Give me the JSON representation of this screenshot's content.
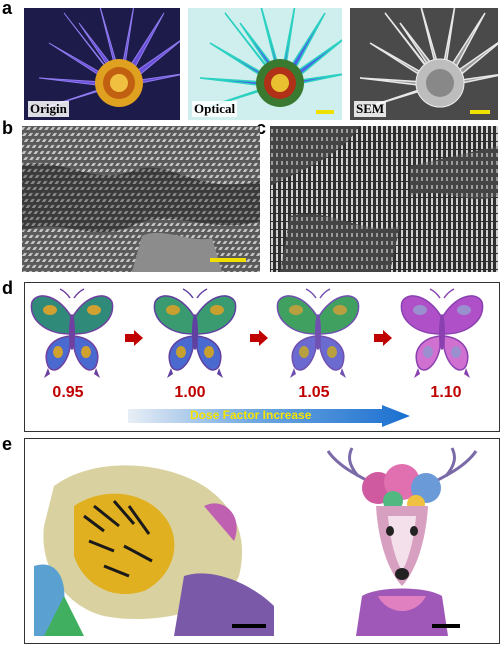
{
  "panels": {
    "a": {
      "label": "a",
      "images": [
        {
          "caption": "Origin"
        },
        {
          "caption": "Optical"
        },
        {
          "caption": "SEM"
        }
      ]
    },
    "b": {
      "label": "b"
    },
    "c": {
      "label": "c"
    },
    "d": {
      "label": "d",
      "dose_values": [
        "0.95",
        "1.00",
        "1.05",
        "1.10"
      ],
      "arrow_text": "Dose Factor Increase"
    },
    "e": {
      "label": "e"
    }
  },
  "colors": {
    "scalebar_yellow": "#f0e000",
    "scalebar_black": "#000000",
    "dose_red": "#c00000",
    "arrow_blue": "#1a6fd0"
  }
}
